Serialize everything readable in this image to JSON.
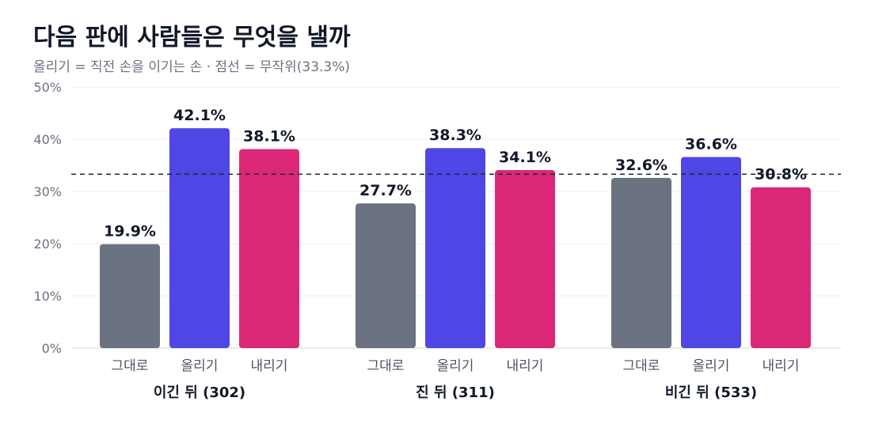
{
  "chart_data": {
    "type": "bar",
    "title": "다음 판에 사람들은 무엇을 낼까",
    "subtitle": "올리기 = 직전 손을 이기는 손 · 점선 = 무작위(33.3%)",
    "ylim": [
      0,
      50
    ],
    "yticks": [
      "0%",
      "10%",
      "20%",
      "30%",
      "40%",
      "50%"
    ],
    "ytick_values": [
      0,
      10,
      20,
      30,
      40,
      50
    ],
    "grid": true,
    "reference_line": {
      "value": 33.3,
      "style": "dashed"
    },
    "groups": [
      {
        "label": "이긴 뒤 (302)",
        "categories": [
          "그대로",
          "올리기",
          "내리기"
        ],
        "values": [
          19.9,
          42.1,
          38.1
        ],
        "labels": [
          "19.9%",
          "42.1%",
          "38.1%"
        ]
      },
      {
        "label": "진 뒤 (311)",
        "categories": [
          "그대로",
          "올리기",
          "내리기"
        ],
        "values": [
          27.7,
          38.3,
          34.1
        ],
        "labels": [
          "27.7%",
          "38.3%",
          "34.1%"
        ]
      },
      {
        "label": "비긴 뒤 (533)",
        "categories": [
          "그대로",
          "올리기",
          "내리기"
        ],
        "values": [
          32.6,
          36.6,
          30.8
        ],
        "labels": [
          "32.6%",
          "36.6%",
          "30.8%"
        ]
      }
    ],
    "colors": {
      "그대로": "#6b7280",
      "올리기": "#4f46e5",
      "내리기": "#db2777"
    }
  }
}
